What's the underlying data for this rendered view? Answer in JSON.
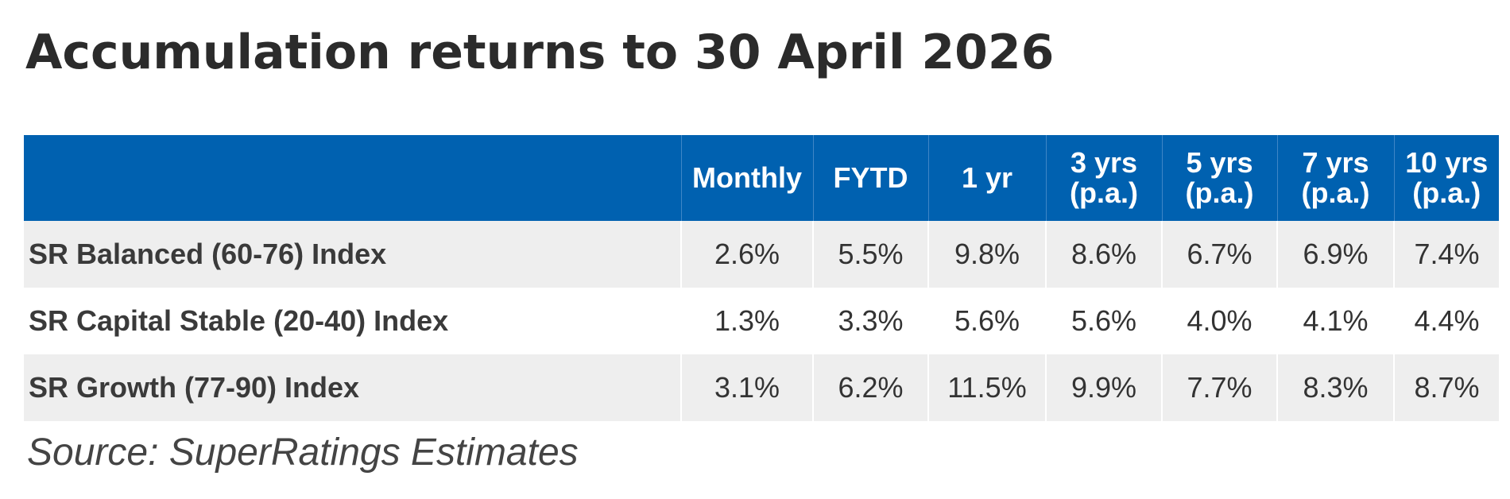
{
  "title": "Accumulation returns to 30 April 2026",
  "table": {
    "headers": [
      {
        "line1": "",
        "line2": ""
      },
      {
        "line1": "Monthly",
        "line2": ""
      },
      {
        "line1": "FYTD",
        "line2": ""
      },
      {
        "line1": "1 yr",
        "line2": ""
      },
      {
        "line1": "3 yrs",
        "line2": "(p.a.)"
      },
      {
        "line1": "5 yrs",
        "line2": "(p.a.)"
      },
      {
        "line1": "7 yrs",
        "line2": "(p.a.)"
      },
      {
        "line1": "10 yrs",
        "line2": "(p.a.)"
      }
    ],
    "rows": [
      {
        "name": "SR Balanced (60-76) Index",
        "values": [
          "2.6%",
          "5.5%",
          "9.8%",
          "8.6%",
          "6.7%",
          "6.9%",
          "7.4%"
        ]
      },
      {
        "name": "SR Capital Stable (20-40) Index",
        "values": [
          "1.3%",
          "3.3%",
          "5.6%",
          "5.6%",
          "4.0%",
          "4.1%",
          "4.4%"
        ]
      },
      {
        "name": "SR Growth (77-90) Index",
        "values": [
          "3.1%",
          "6.2%",
          "11.5%",
          "9.9%",
          "7.7%",
          "8.3%",
          "8.7%"
        ]
      }
    ]
  },
  "source": "Source: SuperRatings Estimates",
  "colors": {
    "header_bg": "#0061b0",
    "row_alt_bg": "#eeeeee",
    "text": "#333333"
  }
}
